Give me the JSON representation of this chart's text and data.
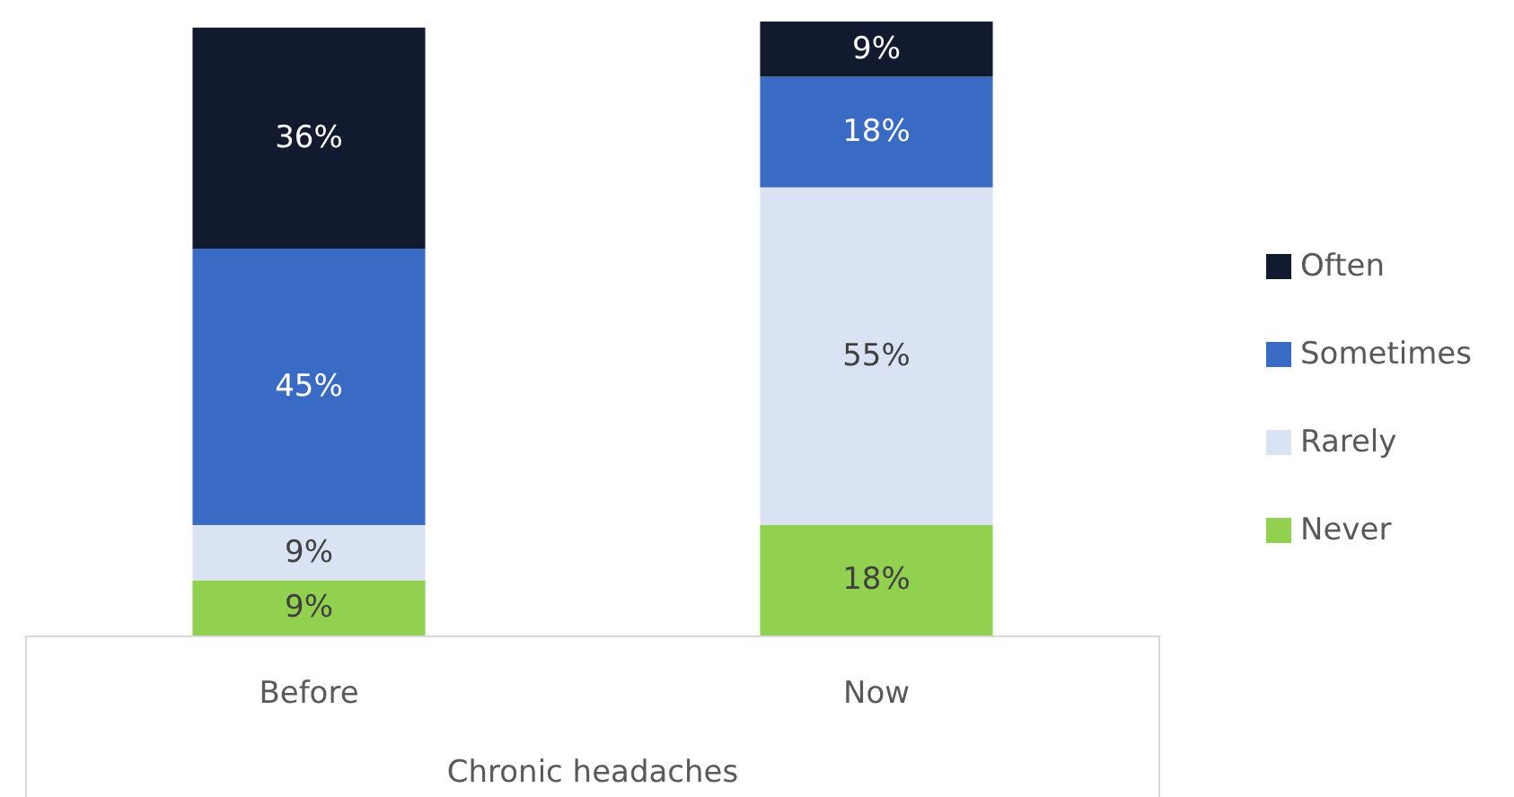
{
  "chart_data": {
    "type": "bar",
    "stacked": true,
    "xlabel": "Chronic headaches",
    "categories": [
      "Before",
      "Now"
    ],
    "legend": "right",
    "series": [
      {
        "name": "Never",
        "color": "#92d050",
        "values": [
          9,
          18
        ],
        "value_labels": [
          "9%",
          "18%"
        ]
      },
      {
        "name": "Rarely",
        "color": "#dae3f3",
        "values": [
          9,
          55
        ],
        "value_labels": [
          "9%",
          "55%"
        ]
      },
      {
        "name": "Sometimes",
        "color": "#3a6bc4",
        "values": [
          45,
          18
        ],
        "value_labels": [
          "45%",
          "18%"
        ]
      },
      {
        "name": "Often",
        "color": "#111a2e",
        "values": [
          36,
          9
        ],
        "value_labels": [
          "36%",
          "9%"
        ]
      }
    ]
  }
}
